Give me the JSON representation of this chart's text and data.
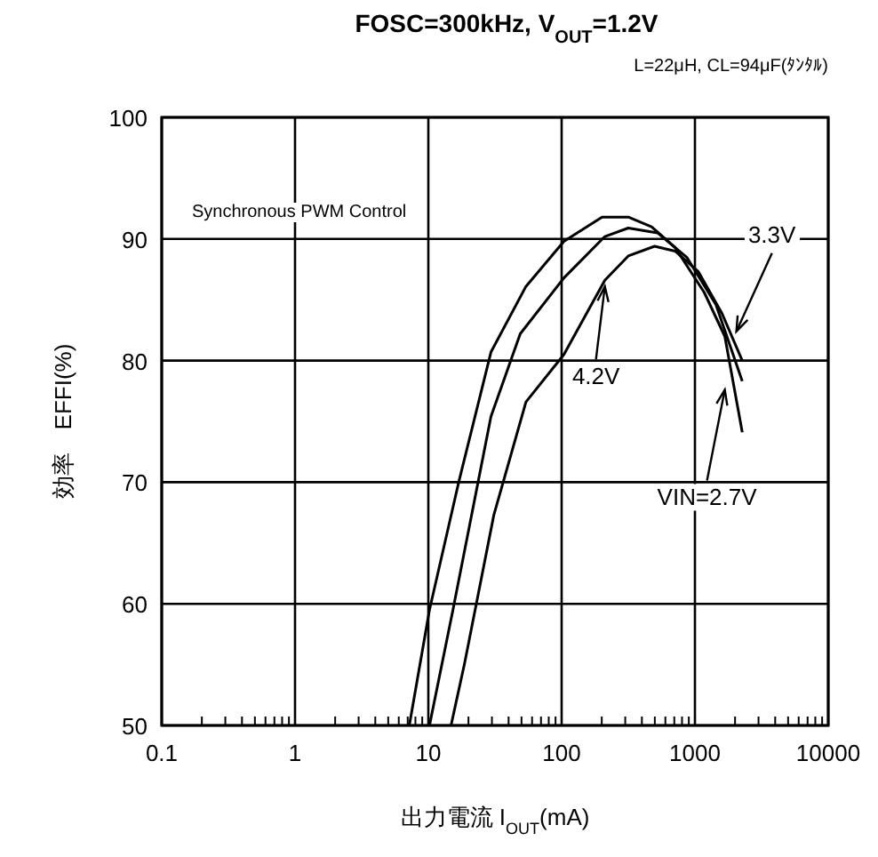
{
  "chart_data": {
    "type": "line",
    "title": "FOSC=300kHz, V$_{OUT}$=1.2V",
    "subtitle": "L=22μH, CL=94μF(ﾀﾝﾀﾙ)",
    "xlabel": "出力電流 I$_{OUT}$(mA)",
    "ylabel": "効率　EFFI(%)",
    "log": "x",
    "xlim": [
      0.1,
      10000
    ],
    "ylim": [
      50,
      100
    ],
    "xticks": [
      0.1,
      1,
      10,
      100,
      1000,
      10000
    ],
    "yticks": [
      50,
      60,
      70,
      80,
      90,
      100
    ],
    "grid": true,
    "line_style": "solid",
    "series": [
      {
        "color": "#000000",
        "x": [
          7.2,
          10.2,
          16.9,
          29.5,
          54,
          104,
          201,
          316,
          473,
          710,
          1175,
          1675,
          2265
        ],
        "values": [
          50,
          59.5,
          70,
          80.7,
          86.1,
          89.8,
          91.8,
          91.8,
          91,
          89.3,
          85.6,
          82,
          74.1
        ]
      },
      {
        "color": "#000000",
        "x": [
          10.2,
          15.3,
          29.5,
          48.9,
          104,
          211,
          316,
          524,
          868,
          1438,
          2265
        ],
        "values": [
          50,
          59.5,
          75.4,
          82.2,
          86.8,
          90.2,
          90.9,
          90.5,
          88.5,
          84.6,
          78.3
        ]
      },
      {
        "color": "#000000",
        "x": [
          14.8,
          18.7,
          31,
          54,
          104,
          211,
          316,
          498,
          710,
          1062,
          1592,
          2265
        ],
        "values": [
          50,
          55.1,
          67.3,
          76.6,
          80.5,
          86.6,
          88.6,
          89.4,
          89,
          87.3,
          83.9,
          80
        ]
      }
    ],
    "annotations": [
      "Synchronous PWM  Control",
      {
        "text": "3.3V",
        "x": 2047,
        "y": 82.4
      },
      {
        "text": "4.2V",
        "x": 211,
        "y": 86.1
      },
      {
        "text": "VIN=2.7V",
        "x": 1675,
        "y": 77.6
      }
    ]
  }
}
